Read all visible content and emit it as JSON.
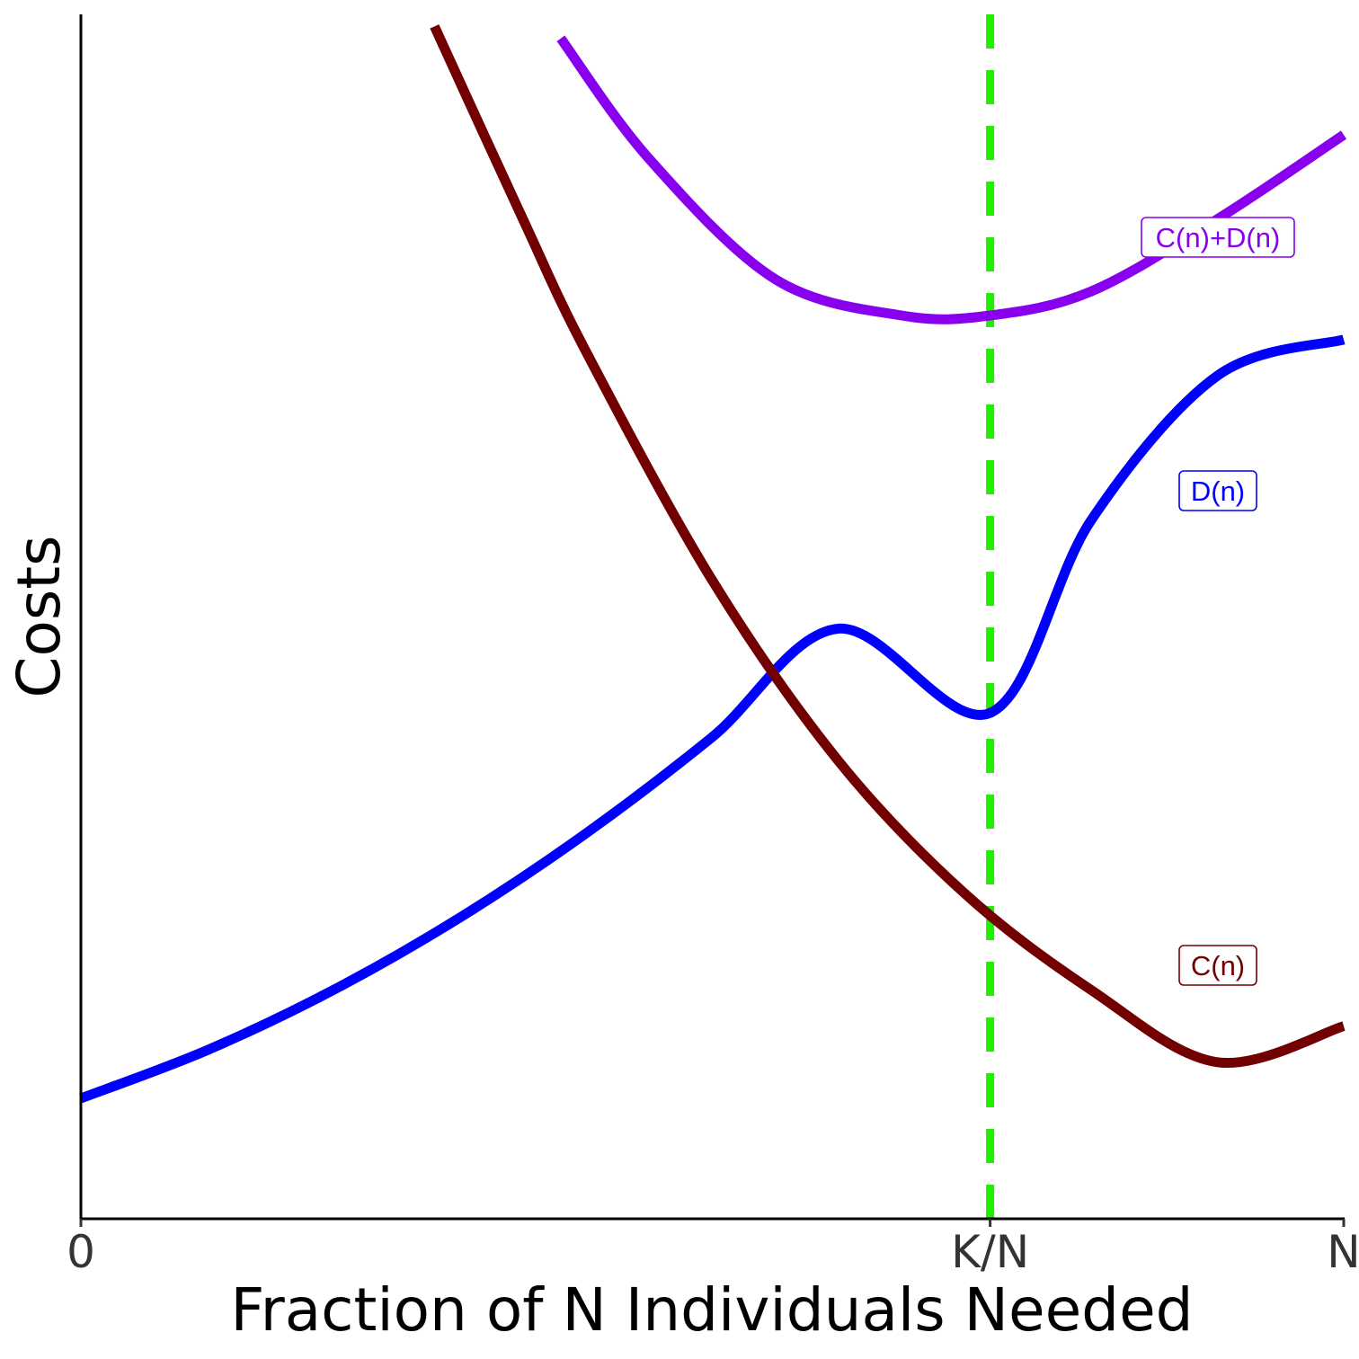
{
  "chart_data": {
    "type": "line",
    "xlabel": "Fraction of N Individuals Needed",
    "ylabel": "Costs",
    "xlim": [
      0,
      1
    ],
    "ylim": [
      0,
      1
    ],
    "x_ticks": [
      {
        "value": 0,
        "label": "0"
      },
      {
        "value": 0.72,
        "label": "K/N"
      },
      {
        "value": 1,
        "label": "N"
      }
    ],
    "grid": false,
    "series": [
      {
        "name": "D(n)",
        "color": "#0000ff",
        "x": [
          0,
          0.1,
          0.2,
          0.3,
          0.4,
          0.5,
          0.6,
          0.72,
          0.8,
          0.9,
          1.0
        ],
        "y": [
          0.1,
          0.14,
          0.19,
          0.25,
          0.32,
          0.4,
          0.49,
          0.42,
          0.58,
          0.7,
          0.73
        ]
      },
      {
        "name": "C(n)",
        "color": "#720000",
        "x": [
          0.28,
          0.35,
          0.4,
          0.5,
          0.6,
          0.7,
          0.8,
          0.9,
          1.0
        ],
        "y": [
          0.99,
          0.83,
          0.72,
          0.53,
          0.38,
          0.27,
          0.19,
          0.13,
          0.16
        ]
      },
      {
        "name": "C(n)+D(n)",
        "color": "#8800ee",
        "x": [
          0.38,
          0.45,
          0.55,
          0.65,
          0.72,
          0.8,
          0.9,
          1.0
        ],
        "y": [
          0.98,
          0.88,
          0.78,
          0.75,
          0.75,
          0.77,
          0.83,
          0.9
        ]
      }
    ],
    "reference_lines": [
      {
        "orientation": "vertical",
        "x": 0.72,
        "color": "#22ee00",
        "style": "dashed"
      }
    ],
    "labels": [
      {
        "text": "C(n)+D(n)",
        "color": "#8800ee"
      },
      {
        "text": "D(n)",
        "color": "#0000ff"
      },
      {
        "text": "C(n)",
        "color": "#720000"
      }
    ]
  }
}
